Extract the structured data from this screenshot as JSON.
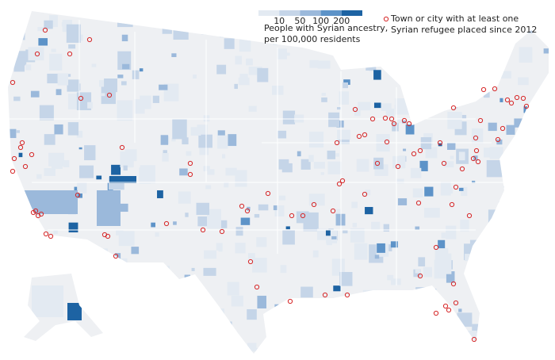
{
  "legend": {
    "ancestry": {
      "ticks": [
        10,
        50,
        100,
        200
      ],
      "colors": [
        "#e3eaf2",
        "#c5d5e8",
        "#9bb9db",
        "#5d93c8",
        "#1d63a3"
      ],
      "label_lines": [
        "People with Syrian ancestry,",
        "per 100,000 residents"
      ]
    },
    "refugee": {
      "color": "#d62728",
      "label_lines": [
        "Town or city with at least one",
        "Syrian refugee placed since 2012"
      ]
    }
  }
}
